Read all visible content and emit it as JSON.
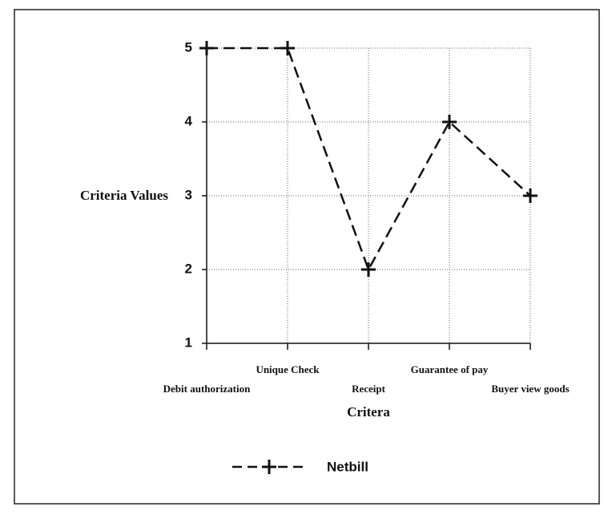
{
  "chart_data": {
    "type": "line",
    "categories": [
      "Debit authorization",
      "Unique Check",
      "Receipt",
      "Guarantee of pay",
      "Buyer view goods"
    ],
    "series": [
      {
        "name": "Netbill",
        "color": "#111111",
        "values": [
          5,
          5,
          2,
          4,
          3
        ]
      }
    ],
    "xlabel": "Critera",
    "ylabel": "Criteria Values",
    "ylim": [
      1,
      5
    ],
    "yticks": [
      1,
      2,
      3,
      4,
      5
    ],
    "grid": true,
    "legend": "bottom"
  }
}
